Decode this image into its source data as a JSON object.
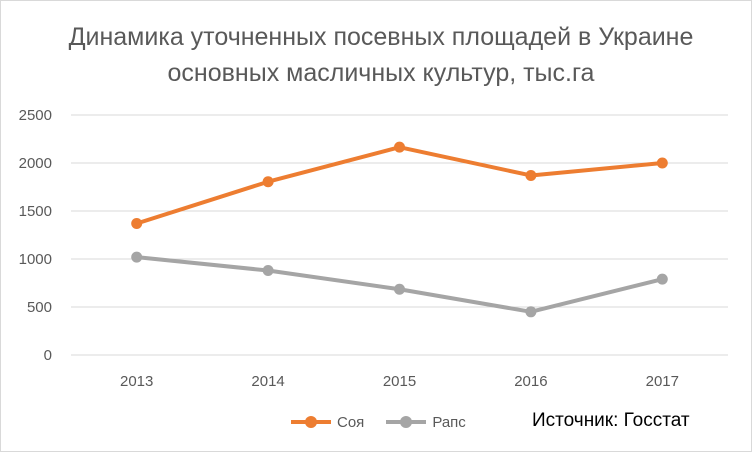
{
  "chart_data": {
    "type": "line",
    "title": "Динамика уточненных посевных площадей в Украине основных масличных культур, тыс.га",
    "categories": [
      "2013",
      "2014",
      "2015",
      "2016",
      "2017"
    ],
    "series": [
      {
        "name": "Соя",
        "color": "#ED7D31",
        "values": [
          1370,
          1805,
          2165,
          1870,
          2000
        ]
      },
      {
        "name": "Рапс",
        "color": "#A5A5A5",
        "values": [
          1020,
          880,
          685,
          450,
          790
        ]
      }
    ],
    "yticks": [
      "0",
      "500",
      "1000",
      "1500",
      "2000",
      "2500"
    ],
    "ylim": [
      0,
      2500
    ],
    "grid": true,
    "legend": "bottom"
  },
  "source_note": "Источник: Госстат",
  "colors": {
    "gridline": "#D9D9D9",
    "axis_text": "#595959"
  }
}
